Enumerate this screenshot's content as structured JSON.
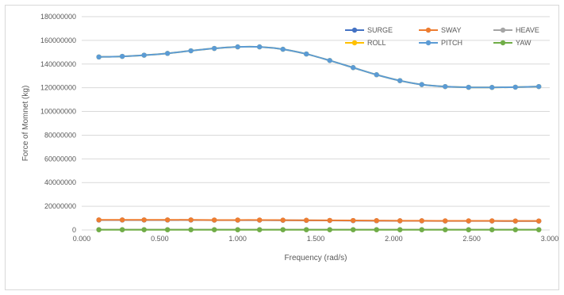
{
  "chart_data": {
    "type": "line",
    "title": "",
    "xlabel": "Frequency (rad/s)",
    "ylabel": "Force of Momnet (kg)",
    "xlim": [
      0,
      3
    ],
    "ylim": [
      0,
      180000000
    ],
    "x_ticks": [
      "0.000",
      "0.500",
      "1.000",
      "1.500",
      "2.000",
      "2.500",
      "3.000"
    ],
    "y_ticks": [
      "0",
      "20000000",
      "40000000",
      "60000000",
      "80000000",
      "100000000",
      "120000000",
      "140000000",
      "160000000",
      "180000000"
    ],
    "grid": true,
    "legend": "top-right",
    "x": [
      0.11,
      0.26,
      0.4,
      0.55,
      0.7,
      0.85,
      1.0,
      1.14,
      1.29,
      1.44,
      1.59,
      1.74,
      1.89,
      2.04,
      2.18,
      2.33,
      2.48,
      2.63,
      2.78,
      2.93
    ],
    "series": [
      {
        "name": "SURGE",
        "color": "#4472C4",
        "values": [
          8400000,
          8400000,
          8400000,
          8400000,
          8400000,
          8300000,
          8300000,
          8300000,
          8200000,
          8100000,
          8000000,
          7900000,
          7800000,
          7700000,
          7700000,
          7600000,
          7600000,
          7600000,
          7500000,
          7500000
        ]
      },
      {
        "name": "SWAY",
        "color": "#ED7D31",
        "values": [
          8500000,
          8500000,
          8500000,
          8500000,
          8500000,
          8400000,
          8400000,
          8400000,
          8300000,
          8200000,
          8100000,
          8000000,
          7900000,
          7800000,
          7800000,
          7700000,
          7700000,
          7700000,
          7600000,
          7600000
        ]
      },
      {
        "name": "HEAVE",
        "color": "#A5A5A5",
        "values": [
          300000,
          300000,
          300000,
          300000,
          300000,
          300000,
          300000,
          300000,
          300000,
          300000,
          300000,
          300000,
          300000,
          300000,
          300000,
          300000,
          300000,
          300000,
          300000,
          300000
        ]
      },
      {
        "name": "ROLL",
        "color": "#FFC000",
        "values": [
          146000000,
          146500000,
          147500000,
          149000000,
          151200000,
          153200000,
          154500000,
          154500000,
          152500000,
          148500000,
          143000000,
          137000000,
          131000000,
          126000000,
          122700000,
          121000000,
          120400000,
          120300000,
          120500000,
          121000000
        ]
      },
      {
        "name": "PITCH",
        "color": "#5B9BD5",
        "values": [
          146000000,
          146500000,
          147500000,
          149000000,
          151200000,
          153200000,
          154500000,
          154500000,
          152500000,
          148500000,
          143000000,
          137000000,
          131000000,
          126000000,
          122700000,
          121000000,
          120400000,
          120300000,
          120500000,
          121000000
        ]
      },
      {
        "name": "YAW",
        "color": "#70AD47",
        "values": [
          200000,
          200000,
          200000,
          200000,
          200000,
          200000,
          200000,
          200000,
          200000,
          200000,
          200000,
          200000,
          200000,
          200000,
          200000,
          200000,
          200000,
          200000,
          200000,
          200000
        ]
      }
    ]
  }
}
